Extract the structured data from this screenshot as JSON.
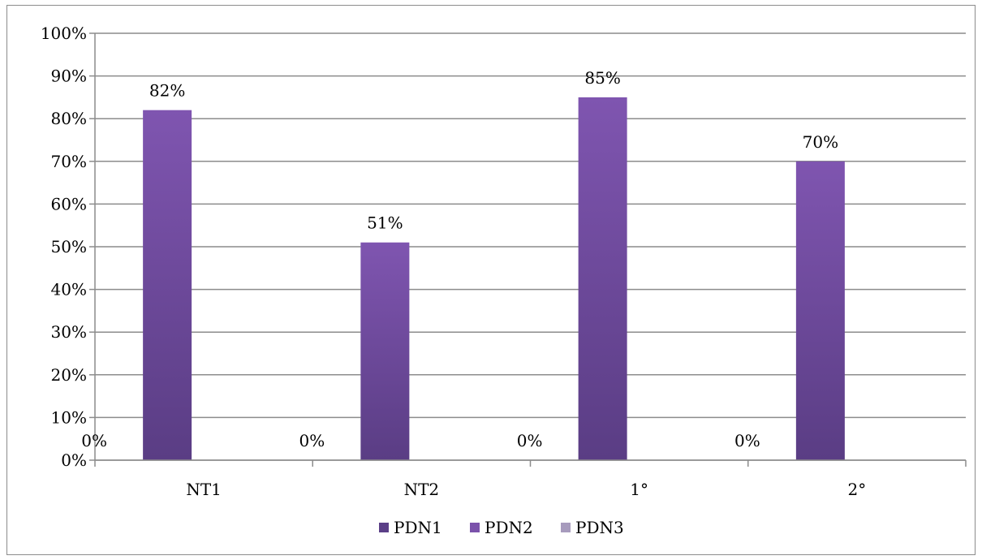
{
  "chart_data": {
    "type": "bar",
    "categories": [
      "NT1",
      "NT2",
      "1°",
      "2°"
    ],
    "series": [
      {
        "name": "PDN1",
        "values": [
          0,
          0,
          0,
          0
        ],
        "color": "#5b3f87"
      },
      {
        "name": "PDN2",
        "values": [
          82,
          51,
          85,
          70
        ],
        "color": "#7b52ab"
      },
      {
        "name": "PDN3",
        "values": [
          0,
          0,
          0,
          0
        ],
        "color": "#a79bbd"
      }
    ],
    "data_labels": [
      [
        "0%",
        "0%",
        "0%",
        "0%"
      ],
      [
        "82%",
        "51%",
        "85%",
        "70%"
      ],
      [
        "",
        "",
        "",
        ""
      ]
    ],
    "y_ticks": [
      "0%",
      "10%",
      "20%",
      "30%",
      "40%",
      "50%",
      "60%",
      "70%",
      "80%",
      "90%",
      "100%"
    ],
    "ylim": [
      0,
      100
    ],
    "grid": true,
    "legend_position": "bottom",
    "title": "",
    "xlabel": "",
    "ylabel": ""
  }
}
